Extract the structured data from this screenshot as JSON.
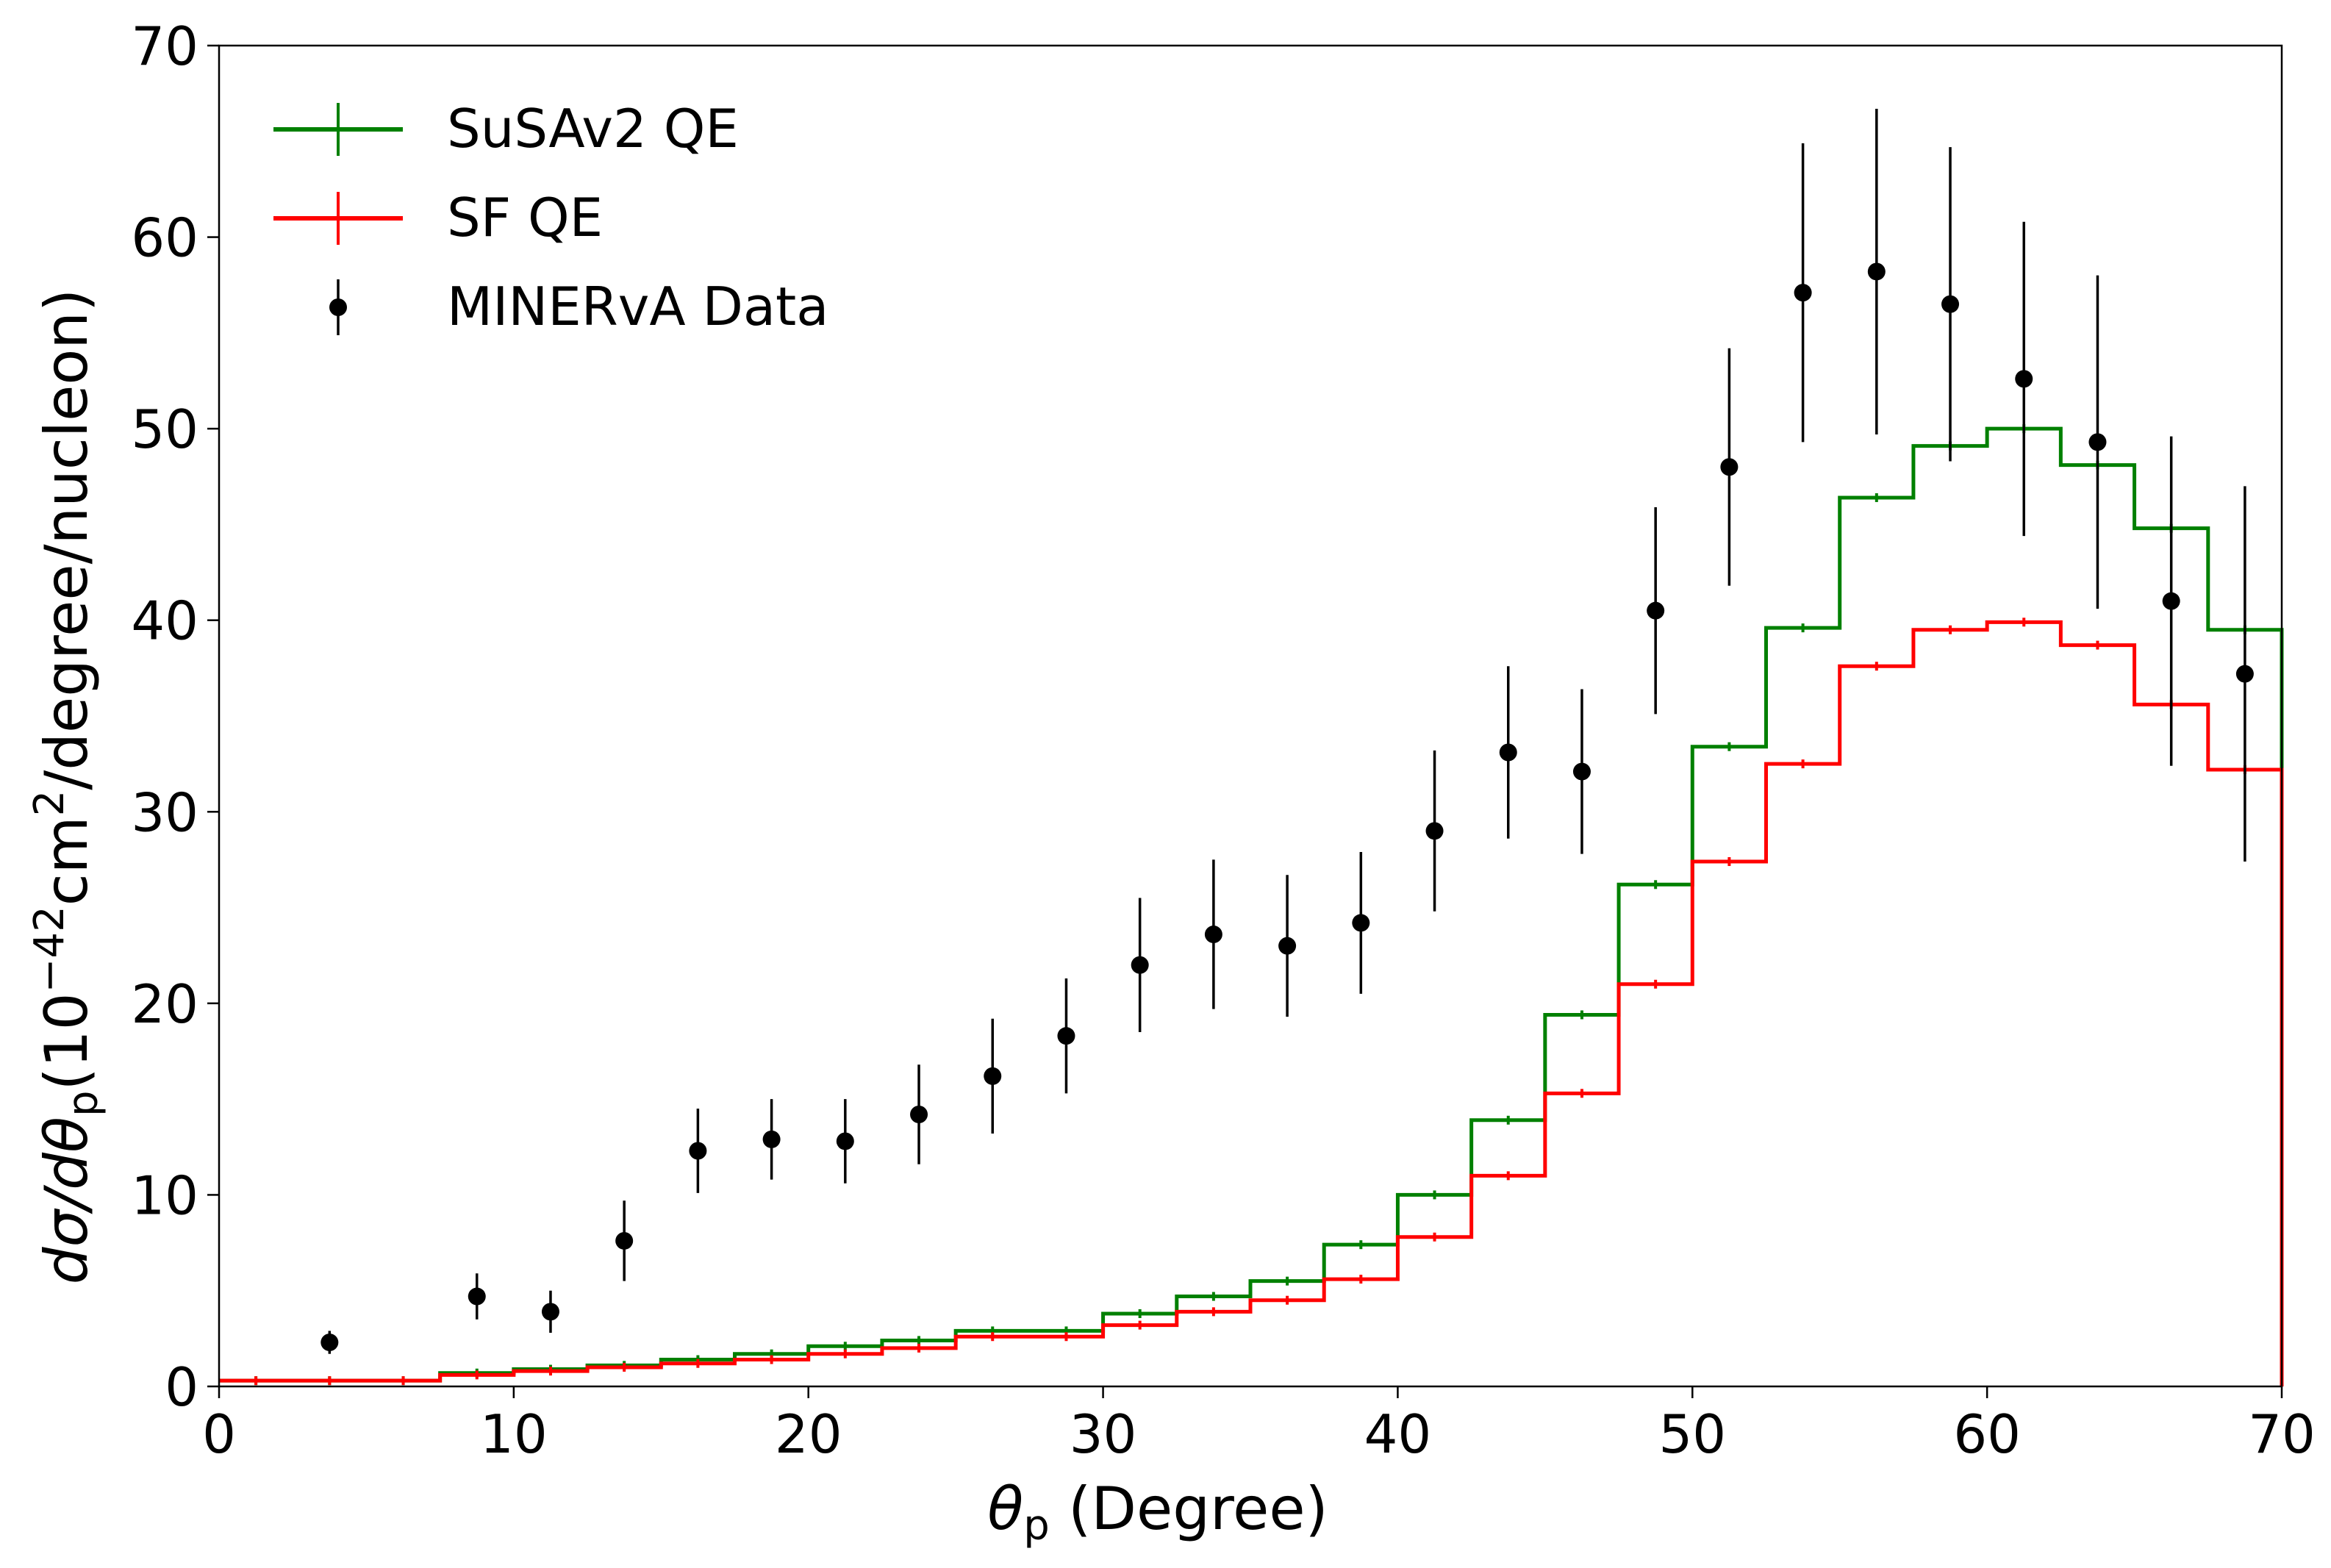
{
  "chart_data": {
    "type": "step-histogram-with-errorbars",
    "xlabel": {
      "symbol": "θ",
      "sub": "p",
      "rest": " (Degree)"
    },
    "ylabel": {
      "text": "dσ/dθ",
      "sub": "p",
      "mid": "(10",
      "sup": "−42",
      "unit": "cm",
      "sup2": "2",
      "rest": "/degree/nucleon)"
    },
    "xlim": [
      0,
      70
    ],
    "ylim": [
      0,
      70
    ],
    "xticks": [
      0,
      10,
      20,
      30,
      40,
      50,
      60,
      70
    ],
    "yticks": [
      0,
      10,
      20,
      30,
      40,
      50,
      60,
      70
    ],
    "bin_edges": [
      0,
      2.5,
      5,
      7.5,
      10,
      12.5,
      15,
      17.5,
      20,
      22.5,
      25,
      27.5,
      30,
      32.5,
      35,
      37.5,
      40,
      42.5,
      45,
      47.5,
      50,
      52.5,
      55,
      57.5,
      60,
      62.5,
      65,
      67.5,
      70
    ],
    "series": [
      {
        "name": "SuSAv2 QE",
        "color": "#008000",
        "values": [
          0.3,
          0.3,
          0.3,
          0.7,
          0.9,
          1.1,
          1.4,
          1.7,
          2.1,
          2.4,
          2.9,
          2.9,
          3.8,
          4.7,
          5.5,
          7.4,
          10.0,
          13.9,
          19.4,
          26.2,
          33.4,
          39.6,
          46.4,
          49.1,
          50.0,
          48.1,
          44.8,
          39.5
        ]
      },
      {
        "name": "SF QE",
        "color": "#ff0000",
        "values": [
          0.3,
          0.3,
          0.3,
          0.6,
          0.8,
          1.0,
          1.2,
          1.4,
          1.7,
          2.0,
          2.6,
          2.6,
          3.2,
          3.9,
          4.5,
          5.6,
          7.8,
          11.0,
          15.3,
          21.0,
          27.4,
          32.5,
          37.6,
          39.5,
          39.9,
          38.7,
          35.6,
          32.2
        ]
      }
    ],
    "data_points": {
      "name": "MINERvA Data",
      "color": "#000000",
      "x": [
        3.75,
        8.75,
        11.25,
        13.75,
        16.25,
        18.75,
        21.25,
        23.75,
        26.25,
        28.75,
        31.25,
        33.75,
        36.25,
        38.75,
        41.25,
        43.75,
        46.25,
        48.75,
        51.25,
        53.75,
        56.25,
        58.75,
        61.25,
        63.75,
        66.25,
        68.75
      ],
      "y": [
        2.3,
        4.7,
        3.9,
        7.6,
        12.3,
        12.9,
        12.8,
        14.2,
        16.2,
        18.3,
        22.0,
        23.6,
        23.0,
        24.2,
        29.0,
        33.1,
        32.1,
        40.5,
        48.0,
        57.1,
        58.2,
        56.5,
        52.6,
        49.3,
        41.0,
        37.2
      ],
      "err": [
        0.6,
        1.2,
        1.1,
        2.1,
        2.2,
        2.1,
        2.2,
        2.6,
        3.0,
        3.0,
        3.5,
        3.9,
        3.7,
        3.7,
        4.2,
        4.5,
        4.3,
        5.4,
        6.2,
        7.8,
        8.5,
        8.2,
        8.2,
        8.7,
        8.6,
        9.8
      ]
    },
    "legend": {
      "placement": "top-left",
      "entries": [
        "SuSAv2 QE",
        "SF QE",
        "MINERvA Data"
      ]
    }
  }
}
